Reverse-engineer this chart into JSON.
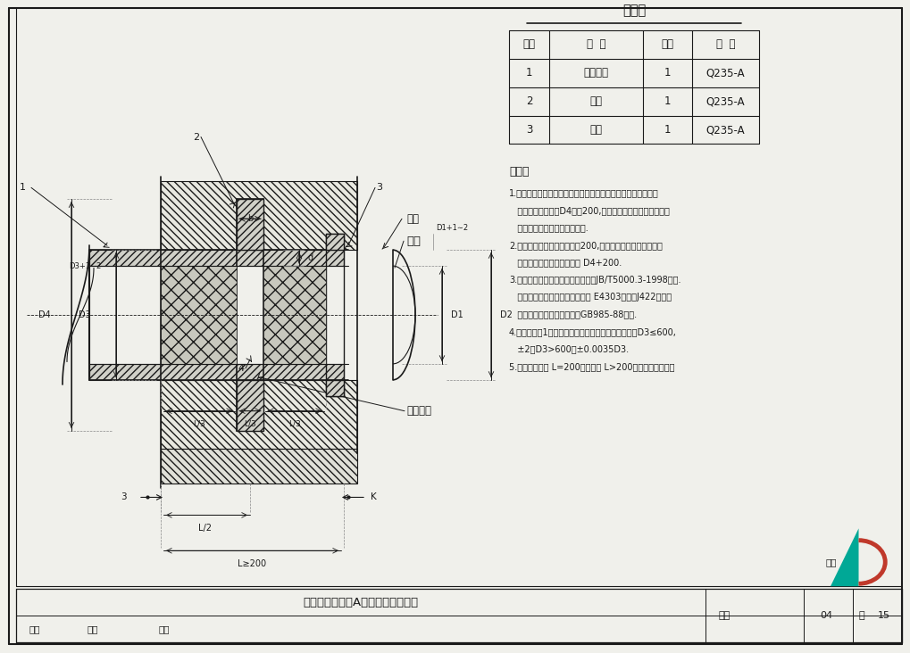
{
  "title": "刚性防水套管（A型）安装图（一）",
  "page_num": "15",
  "figure_num": "04",
  "background_color": "#f0f0eb",
  "table_title": "材料表",
  "table_headers": [
    "序号",
    "名  称",
    "数量",
    "材  料"
  ],
  "table_rows": [
    [
      "1",
      "钢制套管",
      "1",
      "Q235-A"
    ],
    [
      "2",
      "翼环",
      "1",
      "Q235-A"
    ],
    [
      "3",
      "挡圈",
      "1",
      "Q235-A"
    ]
  ],
  "notes_title": "说明：",
  "note_texts": [
    "1.套管穿墙处如遇非混凝土墙壁时，应改用混凝土墙壁，其浇注",
    "   围应比翼环直径（D4）大200,而且必须将套管一次浇固于墙",
    "   内．套管内的填料应紧密搞实.",
    "2.穿管处混凝土墙厚应不小于200,否则应使墙壁一边或两边加",
    "   厚．加厚部分的直径至少为 D4+200.",
    "3.焊接结构尺寸公差与形位公差按照JB/T5000.3-1998执行.",
    "   焊接采用手工电弧焊，焊条型号 E4303，牌号J422．焊缝",
    "   坡口的基本形式与尺寸按照GB985-88执行.",
    "4.当套管（件1）采用卷制成型时，周长允许偏差为：D3≤600,",
    "   ±2，D3>600，±0.0035D3.",
    "5.套管的重量以 L=200计算，当 L>200时，应另行计算。"
  ]
}
